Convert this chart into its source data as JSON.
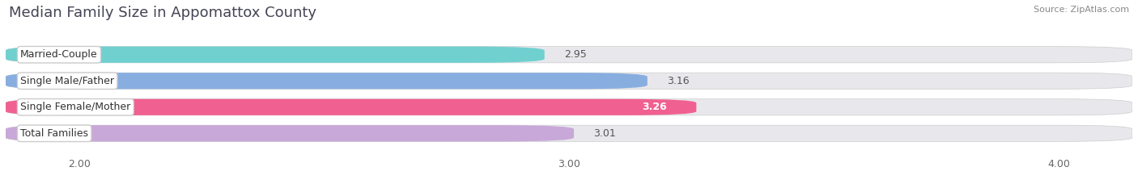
{
  "title": "Median Family Size in Appomattox County",
  "source": "Source: ZipAtlas.com",
  "categories": [
    "Married-Couple",
    "Single Male/Father",
    "Single Female/Mother",
    "Total Families"
  ],
  "values": [
    2.95,
    3.16,
    3.26,
    3.01
  ],
  "bar_colors": [
    "#70d0d0",
    "#88aee0",
    "#f06090",
    "#c8a8d8"
  ],
  "value_inside": [
    false,
    false,
    true,
    false
  ],
  "xlim": [
    1.85,
    4.15
  ],
  "xstart": 1.85,
  "xticks": [
    2.0,
    3.0,
    4.0
  ],
  "xticklabels": [
    "2.00",
    "3.00",
    "4.00"
  ],
  "background_color": "#ffffff",
  "bar_background_color": "#e8e8ec",
  "title_fontsize": 13,
  "source_fontsize": 8,
  "label_fontsize": 9,
  "value_fontsize": 9,
  "tick_fontsize": 9,
  "bar_height": 0.62,
  "figsize": [
    14.06,
    2.33
  ],
  "dpi": 100
}
